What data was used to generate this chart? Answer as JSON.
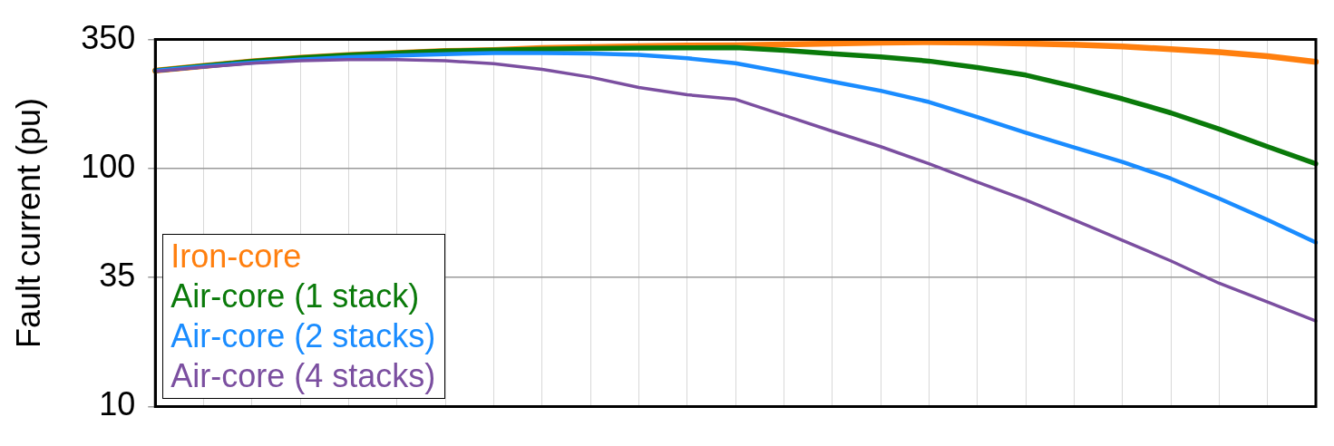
{
  "chart_data": {
    "type": "line",
    "ylabel": "Fault current (pu)",
    "categories": [
      null,
      null,
      null,
      null,
      null,
      null,
      null,
      null,
      null,
      null,
      null,
      null,
      null,
      null,
      null,
      null,
      null,
      null,
      null,
      null,
      null,
      null,
      null,
      null,
      null
    ],
    "series": [
      {
        "name": "Iron-core",
        "color": "#ff7f0e",
        "values": [
          259,
          271,
          283,
          293,
          301,
          307,
          313,
          316,
          322,
          325,
          328,
          330,
          331,
          334,
          337,
          340,
          341,
          340,
          337,
          333,
          327,
          319,
          310,
          298,
          282
        ]
      },
      {
        "name": "Air-core (1 stack)",
        "color": "#0a7a0a",
        "values": [
          259,
          271,
          283,
          293,
          301,
          307,
          313,
          316,
          319,
          321,
          322,
          323,
          324,
          315,
          305,
          296,
          284,
          267,
          248,
          222,
          197,
          172,
          147,
          124,
          105
        ]
      },
      {
        "name": "Air-core (2 stacks)",
        "color": "#1a8cff",
        "values": [
          259,
          270,
          280,
          288,
          295,
          300,
          304,
          307,
          307,
          306,
          302,
          292,
          278,
          255,
          233,
          213,
          191,
          165,
          142,
          123,
          107,
          91,
          75,
          61,
          49
        ]
      },
      {
        "name": "Air-core (4 stacks)",
        "color": "#7b4fa0",
        "values": [
          257,
          268,
          278,
          285,
          288,
          288,
          285,
          277,
          262,
          243,
          220,
          205,
          196,
          168,
          144,
          124,
          105,
          88,
          74,
          61,
          50,
          41,
          33,
          27.5,
          22.9
        ]
      }
    ],
    "log": "y",
    "ylim": [
      10,
      350
    ],
    "yticks": [
      10,
      35,
      100,
      350
    ],
    "grid": true,
    "legend": "bottom left",
    "tick_labels": "y",
    "line_style": "solid",
    "marker": "none"
  }
}
